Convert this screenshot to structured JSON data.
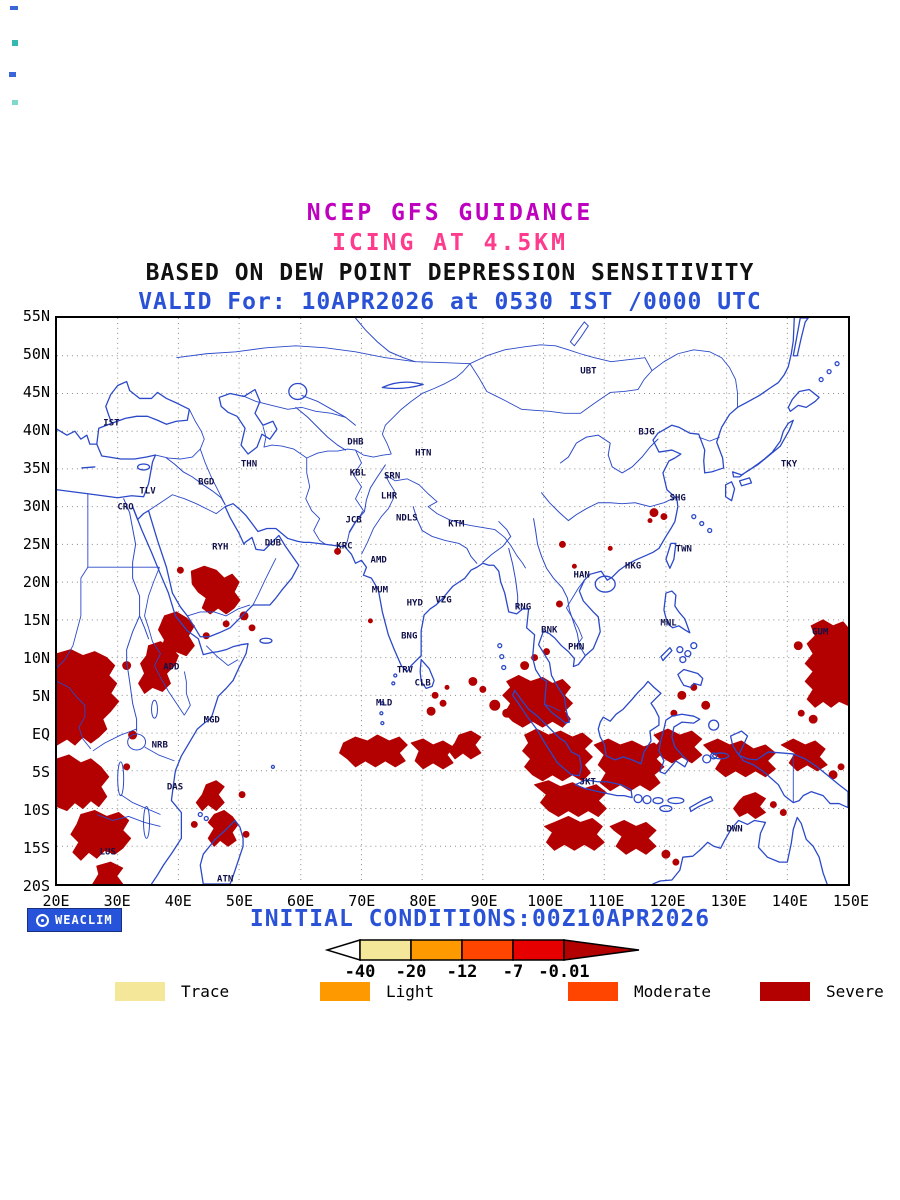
{
  "title": {
    "line1": "NCEP GFS GUIDANCE",
    "line2": "ICING AT 4.5KM",
    "line3": "BASED ON DEW POINT DEPRESSION SENSITIVITY",
    "line4": "VALID For: 10APR2026 at 0530 IST /0000 UTC"
  },
  "axes": {
    "lat_labels": [
      "55N",
      "50N",
      "45N",
      "40N",
      "35N",
      "30N",
      "25N",
      "20N",
      "15N",
      "10N",
      "5N",
      "EQ",
      "5S",
      "10S",
      "15S",
      "20S"
    ],
    "lon_labels": [
      "20E",
      "30E",
      "40E",
      "50E",
      "60E",
      "70E",
      "80E",
      "90E",
      "100E",
      "110E",
      "120E",
      "130E",
      "140E",
      "150E"
    ]
  },
  "cities": [
    {
      "code": "IST",
      "lon": 28.9,
      "lat": 41.0
    },
    {
      "code": "TLV",
      "lon": 34.8,
      "lat": 32.1
    },
    {
      "code": "CRO",
      "lon": 31.2,
      "lat": 30.0
    },
    {
      "code": "THN",
      "lon": 51.4,
      "lat": 35.7
    },
    {
      "code": "BGD",
      "lon": 44.4,
      "lat": 33.3
    },
    {
      "code": "DHB",
      "lon": 68.8,
      "lat": 38.6
    },
    {
      "code": "KBL",
      "lon": 69.2,
      "lat": 34.5
    },
    {
      "code": "SRN",
      "lon": 74.8,
      "lat": 34.1
    },
    {
      "code": "HTN",
      "lon": 79.9,
      "lat": 37.1
    },
    {
      "code": "LHR",
      "lon": 74.3,
      "lat": 31.5
    },
    {
      "code": "JCB",
      "lon": 68.5,
      "lat": 28.3
    },
    {
      "code": "NDLS",
      "lon": 77.2,
      "lat": 28.6
    },
    {
      "code": "KTM",
      "lon": 85.3,
      "lat": 27.7
    },
    {
      "code": "RYH",
      "lon": 46.7,
      "lat": 24.7
    },
    {
      "code": "DUB",
      "lon": 55.3,
      "lat": 25.3
    },
    {
      "code": "KRC",
      "lon": 67.0,
      "lat": 24.9
    },
    {
      "code": "AMD",
      "lon": 72.6,
      "lat": 23.0
    },
    {
      "code": "MUM",
      "lon": 72.8,
      "lat": 19.1
    },
    {
      "code": "HYD",
      "lon": 78.5,
      "lat": 17.4
    },
    {
      "code": "VZG",
      "lon": 83.2,
      "lat": 17.7
    },
    {
      "code": "BNG",
      "lon": 77.6,
      "lat": 13.0
    },
    {
      "code": "TRV",
      "lon": 76.9,
      "lat": 8.5
    },
    {
      "code": "CLB",
      "lon": 79.8,
      "lat": 6.9
    },
    {
      "code": "MLD",
      "lon": 73.5,
      "lat": 4.2
    },
    {
      "code": "MGD",
      "lon": 45.3,
      "lat": 2.0
    },
    {
      "code": "NRB",
      "lon": 36.8,
      "lat": -1.3
    },
    {
      "code": "ADD",
      "lon": 38.7,
      "lat": 9.0
    },
    {
      "code": "DAS",
      "lon": 39.3,
      "lat": -6.8
    },
    {
      "code": "LUS",
      "lon": 28.3,
      "lat": -15.4
    },
    {
      "code": "ATN",
      "lon": 47.5,
      "lat": -18.9
    },
    {
      "code": "UBT",
      "lon": 106.9,
      "lat": 47.9
    },
    {
      "code": "BJG",
      "lon": 116.4,
      "lat": 39.9
    },
    {
      "code": "TKY",
      "lon": 139.7,
      "lat": 35.7
    },
    {
      "code": "SHG",
      "lon": 121.5,
      "lat": 31.2
    },
    {
      "code": "TWN",
      "lon": 122.5,
      "lat": 24.5
    },
    {
      "code": "HKG",
      "lon": 114.2,
      "lat": 22.3
    },
    {
      "code": "HAN",
      "lon": 105.8,
      "lat": 21.0
    },
    {
      "code": "RNG",
      "lon": 96.2,
      "lat": 16.8
    },
    {
      "code": "BNK",
      "lon": 100.5,
      "lat": 13.8
    },
    {
      "code": "PHN",
      "lon": 104.9,
      "lat": 11.6
    },
    {
      "code": "MNL",
      "lon": 120.0,
      "lat": 14.8
    },
    {
      "code": "GUM",
      "lon": 144.8,
      "lat": 13.5
    },
    {
      "code": "JKT",
      "lon": 106.8,
      "lat": -6.2
    },
    {
      "code": "DWN",
      "lon": 130.8,
      "lat": -12.4
    }
  ],
  "colors": {
    "title_magenta": "#bf00bf",
    "title_pink": "#ff3b8d",
    "valid_blue": "#2a52d6",
    "coastline_blue": "#2b49c8",
    "grid_gray": "#8a8a8a",
    "severe_red": "#b30000"
  },
  "footer": {
    "logo_text": "WEACLIM",
    "initial_conditions": "INITIAL CONDITIONS:00Z10APR2026",
    "scale": {
      "labels": [
        "-40",
        "-20",
        "-12",
        "-7",
        "-0.01"
      ],
      "segment_colors": [
        "#ffffff",
        "#f5e79a",
        "#ff9900",
        "#ff4500",
        "#e60000",
        "#b30000"
      ]
    },
    "legend": [
      {
        "label": "Trace",
        "color": "#f5e79a"
      },
      {
        "label": "Light",
        "color": "#ff9900"
      },
      {
        "label": "Moderate",
        "color": "#ff4500"
      },
      {
        "label": "Severe",
        "color": "#b30000"
      }
    ]
  }
}
